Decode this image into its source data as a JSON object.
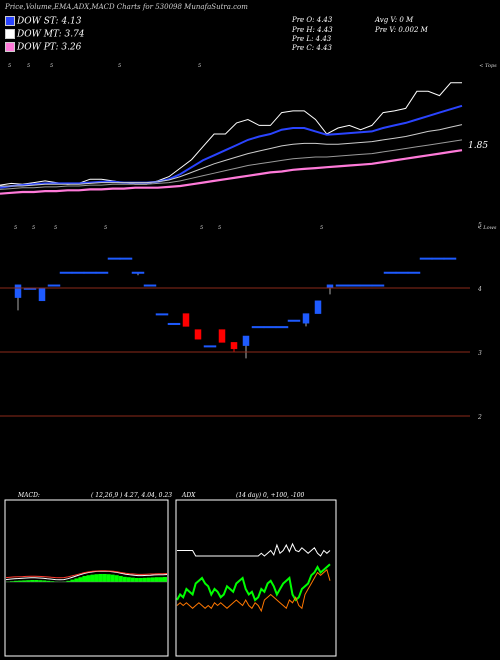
{
  "header": {
    "title": "Price,Volume,EMA,ADX,MACD Charts for 530098 MunafaSutra.com",
    "dow": [
      {
        "label": "DOW ST: 4.13",
        "color": "#2a44ff"
      },
      {
        "label": "DOW MT: 3.74",
        "color": "#ffffff"
      },
      {
        "label": "DOW PT: 3.26",
        "color": "#ff7ad9"
      }
    ],
    "prev": {
      "open": "Pre   O: 4.43",
      "high": "Pre   H: 4.43",
      "low": "Pre   L: 4.43",
      "close": "Pre   C: 4.43",
      "avg_vol": "Avg V: 0  M",
      "prev_vol": "Pre   V: 0.002  M"
    }
  },
  "top_panel": {
    "right_label": "< Tops",
    "price_label": "1.85"
  },
  "candle_panel": {
    "right_label": "< Lows",
    "axis": [
      {
        "value": 5,
        "label": "5"
      },
      {
        "value": 4,
        "label": "4"
      },
      {
        "value": 3,
        "label": "3"
      },
      {
        "value": 2,
        "label": "2"
      }
    ]
  },
  "macd": {
    "label": "MACD:",
    "params": "( 12,26,9 ) 4.27,  4.04,  0.23"
  },
  "adx": {
    "label": "ADX",
    "params": "(14  day) 0,  +100,  -100"
  },
  "chart_data": [
    {
      "type": "candlestick",
      "name": "price",
      "ylim": [
        1.6,
        5.1
      ],
      "candles": [
        {
          "o": 3.85,
          "h": 4.05,
          "l": 3.65,
          "c": 4.05,
          "color": "blue"
        },
        {
          "o": 4.0,
          "h": 4.0,
          "l": 4.0,
          "c": 4.0,
          "color": "blue"
        },
        {
          "o": 3.8,
          "h": 4.0,
          "l": 3.8,
          "c": 4.0,
          "color": "blue"
        },
        {
          "o": 4.05,
          "h": 4.05,
          "l": 4.05,
          "c": 4.05,
          "color": "blue"
        },
        {
          "o": 4.25,
          "h": 4.25,
          "l": 4.25,
          "c": 4.25,
          "color": "blue"
        },
        {
          "o": 4.25,
          "h": 4.25,
          "l": 4.25,
          "c": 4.25,
          "color": "blue"
        },
        {
          "o": 4.25,
          "h": 4.25,
          "l": 4.25,
          "c": 4.25,
          "color": "blue"
        },
        {
          "o": 4.25,
          "h": 4.25,
          "l": 4.25,
          "c": 4.25,
          "color": "blue"
        },
        {
          "o": 4.47,
          "h": 4.47,
          "l": 4.47,
          "c": 4.47,
          "color": "blue"
        },
        {
          "o": 4.47,
          "h": 4.47,
          "l": 4.47,
          "c": 4.47,
          "color": "blue"
        },
        {
          "o": 4.25,
          "h": 4.25,
          "l": 4.2,
          "c": 4.25,
          "color": "blue"
        },
        {
          "o": 4.05,
          "h": 4.05,
          "l": 4.05,
          "c": 4.05,
          "color": "blue"
        },
        {
          "o": 3.6,
          "h": 3.6,
          "l": 3.6,
          "c": 3.6,
          "color": "blue"
        },
        {
          "o": 3.45,
          "h": 3.45,
          "l": 3.45,
          "c": 3.45,
          "color": "blue"
        },
        {
          "o": 3.6,
          "h": 3.6,
          "l": 3.4,
          "c": 3.4,
          "color": "red"
        },
        {
          "o": 3.35,
          "h": 3.35,
          "l": 3.2,
          "c": 3.2,
          "color": "red"
        },
        {
          "o": 3.1,
          "h": 3.1,
          "l": 3.1,
          "c": 3.1,
          "color": "blue"
        },
        {
          "o": 3.35,
          "h": 3.35,
          "l": 3.15,
          "c": 3.15,
          "color": "red"
        },
        {
          "o": 3.15,
          "h": 3.15,
          "l": 3.0,
          "c": 3.05,
          "color": "red"
        },
        {
          "o": 3.1,
          "h": 3.25,
          "l": 2.9,
          "c": 3.25,
          "color": "blue"
        },
        {
          "o": 3.4,
          "h": 3.4,
          "l": 3.4,
          "c": 3.4,
          "color": "blue"
        },
        {
          "o": 3.4,
          "h": 3.4,
          "l": 3.4,
          "c": 3.4,
          "color": "blue"
        },
        {
          "o": 3.4,
          "h": 3.4,
          "l": 3.4,
          "c": 3.4,
          "color": "blue"
        },
        {
          "o": 3.5,
          "h": 3.5,
          "l": 3.5,
          "c": 3.5,
          "color": "blue"
        },
        {
          "o": 3.45,
          "h": 3.6,
          "l": 3.4,
          "c": 3.6,
          "color": "blue"
        },
        {
          "o": 3.6,
          "h": 3.8,
          "l": 3.6,
          "c": 3.8,
          "color": "blue"
        },
        {
          "o": 4.0,
          "h": 4.05,
          "l": 3.9,
          "c": 4.05,
          "color": "blue"
        },
        {
          "o": 4.05,
          "h": 4.05,
          "l": 4.05,
          "c": 4.05,
          "color": "blue"
        },
        {
          "o": 4.05,
          "h": 4.05,
          "l": 4.05,
          "c": 4.05,
          "color": "blue"
        },
        {
          "o": 4.05,
          "h": 4.05,
          "l": 4.05,
          "c": 4.05,
          "color": "blue"
        },
        {
          "o": 4.05,
          "h": 4.05,
          "l": 4.05,
          "c": 4.05,
          "color": "blue"
        },
        {
          "o": 4.25,
          "h": 4.25,
          "l": 4.25,
          "c": 4.25,
          "color": "blue"
        },
        {
          "o": 4.25,
          "h": 4.25,
          "l": 4.25,
          "c": 4.25,
          "color": "blue"
        },
        {
          "o": 4.25,
          "h": 4.25,
          "l": 4.25,
          "c": 4.25,
          "color": "blue"
        },
        {
          "o": 4.47,
          "h": 4.47,
          "l": 4.47,
          "c": 4.47,
          "color": "blue"
        },
        {
          "o": 4.47,
          "h": 4.47,
          "l": 4.47,
          "c": 4.47,
          "color": "blue"
        },
        {
          "o": 4.47,
          "h": 4.47,
          "l": 4.47,
          "c": 4.47,
          "color": "blue"
        }
      ]
    },
    {
      "type": "line",
      "name": "ema",
      "series": [
        {
          "color": "#ffffff",
          "values": [
            1.85,
            1.87,
            1.86,
            1.88,
            1.9,
            1.88,
            1.86,
            1.87,
            1.92,
            1.92,
            1.9,
            1.88,
            1.86,
            1.86,
            1.9,
            1.95,
            2.05,
            2.15,
            2.3,
            2.45,
            2.45,
            2.58,
            2.62,
            2.55,
            2.55,
            2.7,
            2.72,
            2.72,
            2.62,
            2.45,
            2.52,
            2.55,
            2.5,
            2.55,
            2.7,
            2.72,
            2.75,
            2.95,
            2.95,
            2.9,
            3.05,
            3.05
          ]
        },
        {
          "color": "#2a44ff",
          "values": [
            1.82,
            1.84,
            1.85,
            1.86,
            1.87,
            1.87,
            1.87,
            1.87,
            1.88,
            1.89,
            1.89,
            1.88,
            1.88,
            1.88,
            1.89,
            1.92,
            1.98,
            2.06,
            2.14,
            2.2,
            2.26,
            2.32,
            2.38,
            2.42,
            2.45,
            2.5,
            2.52,
            2.52,
            2.48,
            2.44,
            2.45,
            2.46,
            2.47,
            2.48,
            2.52,
            2.55,
            2.58,
            2.62,
            2.66,
            2.7,
            2.74,
            2.78
          ]
        },
        {
          "color": "#cccccc",
          "values": [
            1.84,
            1.84,
            1.84,
            1.85,
            1.86,
            1.86,
            1.86,
            1.86,
            1.87,
            1.88,
            1.88,
            1.88,
            1.88,
            1.88,
            1.89,
            1.91,
            1.95,
            2.0,
            2.05,
            2.1,
            2.14,
            2.18,
            2.22,
            2.25,
            2.28,
            2.31,
            2.33,
            2.34,
            2.34,
            2.33,
            2.33,
            2.34,
            2.35,
            2.36,
            2.38,
            2.4,
            2.42,
            2.45,
            2.48,
            2.5,
            2.53,
            2.56
          ]
        },
        {
          "color": "#999999",
          "values": [
            1.8,
            1.81,
            1.82,
            1.82,
            1.83,
            1.83,
            1.84,
            1.84,
            1.85,
            1.85,
            1.86,
            1.86,
            1.86,
            1.86,
            1.87,
            1.88,
            1.9,
            1.93,
            1.96,
            1.99,
            2.02,
            2.05,
            2.08,
            2.1,
            2.12,
            2.14,
            2.16,
            2.17,
            2.18,
            2.18,
            2.19,
            2.2,
            2.21,
            2.22,
            2.24,
            2.26,
            2.28,
            2.3,
            2.32,
            2.34,
            2.36,
            2.38
          ]
        },
        {
          "color": "#ff7ad9",
          "values": [
            1.75,
            1.76,
            1.77,
            1.77,
            1.78,
            1.78,
            1.79,
            1.79,
            1.8,
            1.8,
            1.81,
            1.81,
            1.82,
            1.82,
            1.82,
            1.83,
            1.84,
            1.86,
            1.88,
            1.9,
            1.92,
            1.94,
            1.96,
            1.98,
            2.0,
            2.01,
            2.03,
            2.04,
            2.05,
            2.06,
            2.07,
            2.08,
            2.09,
            2.1,
            2.12,
            2.14,
            2.16,
            2.18,
            2.2,
            2.22,
            2.24,
            2.26
          ]
        }
      ]
    },
    {
      "type": "area",
      "name": "macd",
      "histogram": [
        0.1,
        0.2,
        0.3,
        0.35,
        0.4,
        0.45,
        0.5,
        0.5,
        0.45,
        0.4,
        0.3,
        0.2,
        0.1,
        0.05,
        0.1,
        0.3,
        0.6,
        0.9,
        1.2,
        1.5,
        1.7,
        1.85,
        1.95,
        2.0,
        2.0,
        1.95,
        1.85,
        1.7,
        1.5,
        1.3,
        1.2,
        1.1,
        1.0,
        1.0,
        1.05,
        1.1,
        1.15,
        1.2,
        1.2,
        1.25
      ]
    },
    {
      "type": "line",
      "name": "adx",
      "series": [
        {
          "color": "#ffffff",
          "values": [
            50,
            50,
            50,
            50,
            50,
            50,
            40,
            40,
            40,
            40,
            40,
            40,
            40,
            40,
            40,
            40,
            40,
            40,
            40,
            40,
            40,
            40,
            40,
            40,
            40,
            40,
            40,
            45,
            40,
            45,
            50,
            42,
            60,
            45,
            50,
            60,
            48,
            62,
            50,
            48,
            55,
            50,
            45,
            50,
            55,
            45,
            40,
            50,
            45,
            50
          ]
        },
        {
          "color": "#00ff00",
          "values": [
            -40,
            -30,
            -35,
            -20,
            -25,
            -30,
            -10,
            -5,
            0,
            -10,
            -15,
            -30,
            -20,
            -25,
            -35,
            -30,
            -15,
            -20,
            -25,
            -10,
            -5,
            0,
            -20,
            -30,
            -25,
            -40,
            -35,
            -20,
            -25,
            -10,
            -5,
            -15,
            -30,
            -20,
            -10,
            -5,
            0,
            -30,
            -40,
            -35,
            -20,
            -15,
            -10,
            5,
            10,
            20,
            10,
            15,
            20,
            25
          ]
        },
        {
          "color": "#ff7700",
          "values": [
            -50,
            -45,
            -50,
            -45,
            -50,
            -55,
            -50,
            -45,
            -50,
            -55,
            -50,
            -55,
            -45,
            -50,
            -45,
            -50,
            -55,
            -50,
            -45,
            -40,
            -45,
            -50,
            -40,
            -50,
            -55,
            -45,
            -50,
            -60,
            -40,
            -35,
            -30,
            -35,
            -40,
            -45,
            -50,
            -55,
            -40,
            -45,
            -35,
            -50,
            -55,
            -30,
            -20,
            -10,
            0,
            10,
            5,
            10,
            15,
            -5
          ]
        }
      ]
    }
  ]
}
